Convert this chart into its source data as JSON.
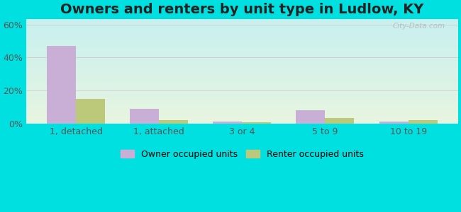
{
  "title": "Owners and renters by unit type in Ludlow, KY",
  "categories": [
    "1, detached",
    "1, attached",
    "3 or 4",
    "5 to 9",
    "10 to 19"
  ],
  "owner_values": [
    47,
    9,
    1.5,
    8,
    1.5
  ],
  "renter_values": [
    15,
    2,
    1,
    3.5,
    2
  ],
  "owner_color": "#c9aed6",
  "renter_color": "#bdc97a",
  "grad_top_left": "#c8f0f0",
  "grad_bottom_right": "#e8f5e0",
  "outer_bg": "#00e0e0",
  "yticks": [
    0,
    20,
    40,
    60
  ],
  "ylim": [
    0,
    63
  ],
  "bar_width": 0.35,
  "title_fontsize": 14,
  "tick_fontsize": 9,
  "legend_fontsize": 9,
  "watermark": "City-Data.com"
}
